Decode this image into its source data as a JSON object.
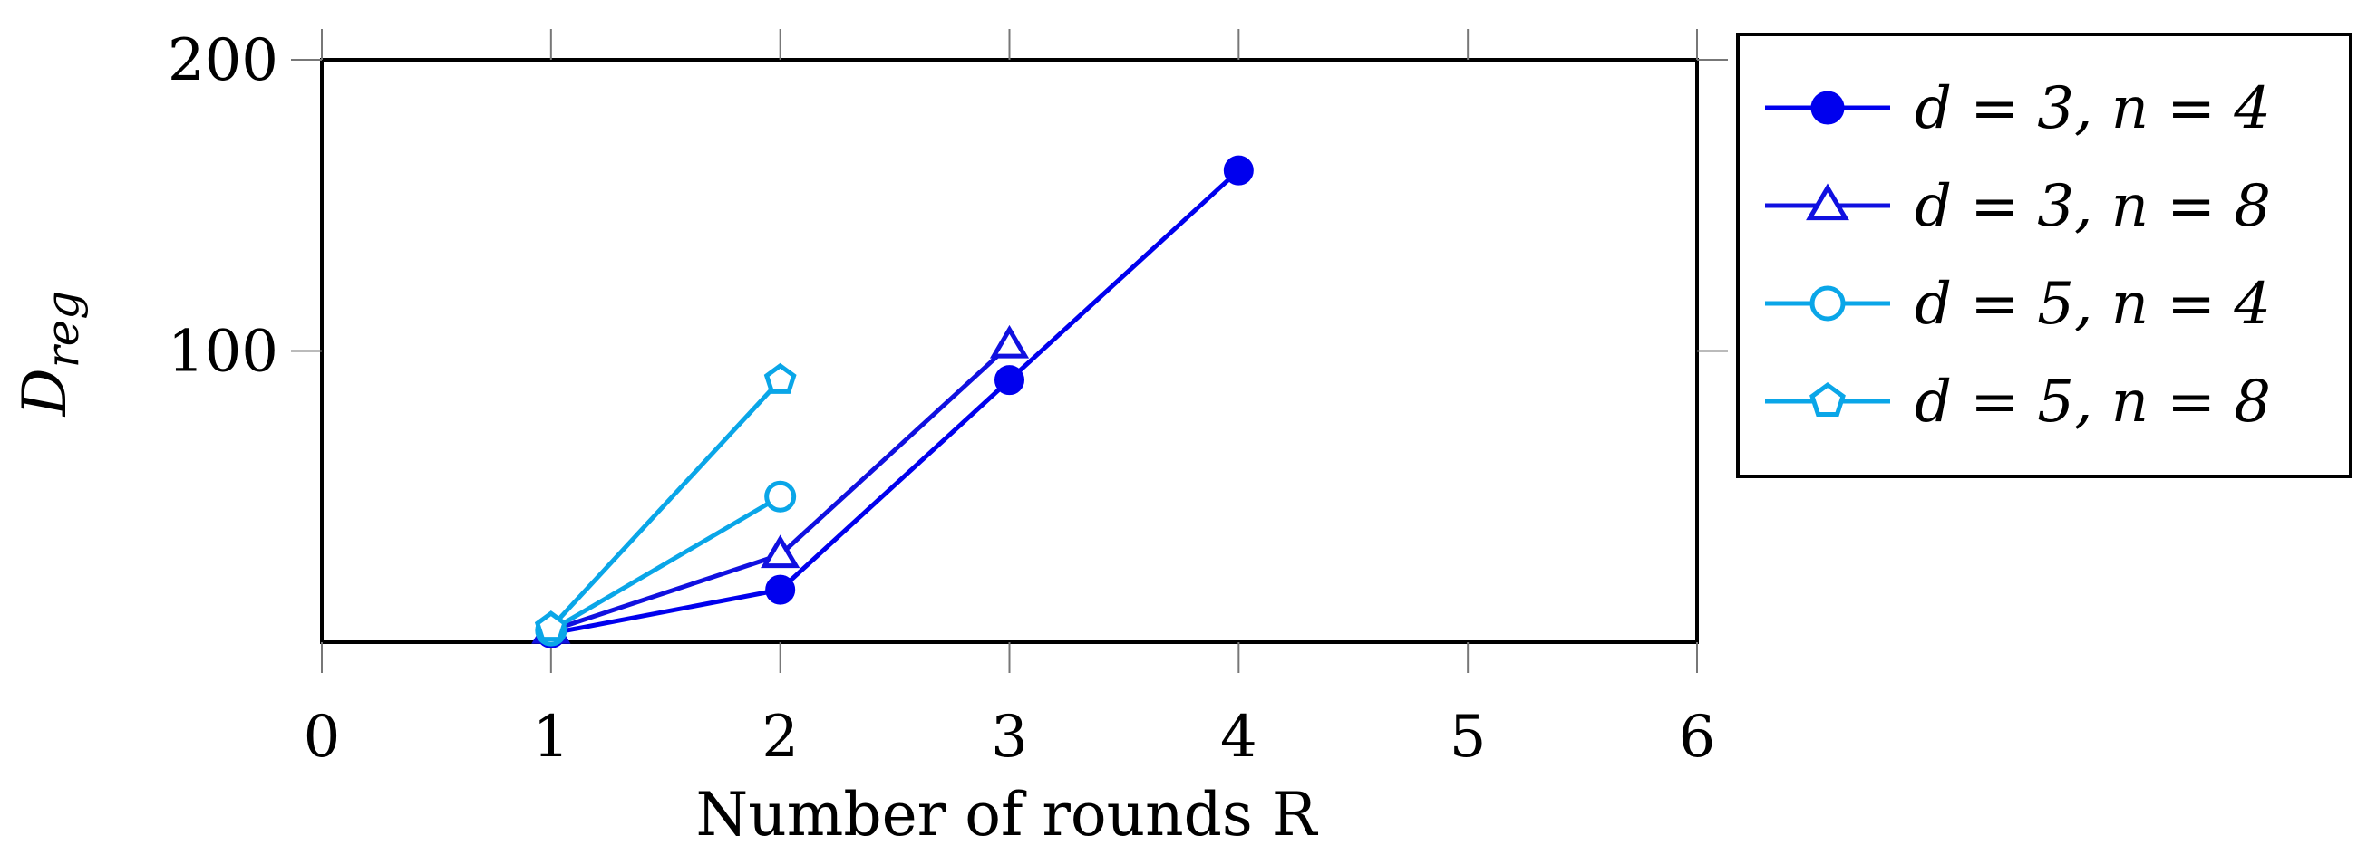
{
  "chart_data": {
    "type": "line",
    "xlabel": "Number of rounds R",
    "ylabel": "D_reg",
    "xlim": [
      0,
      6
    ],
    "ylim": [
      0,
      200
    ],
    "xticks": [
      0,
      1,
      2,
      3,
      4,
      5,
      6
    ],
    "yticks": [
      100,
      200
    ],
    "grid": false,
    "legend_position": "right",
    "series": [
      {
        "name": "d = 3, n = 4",
        "marker": "circle-filled",
        "color": "#0000ee",
        "x": [
          1,
          2,
          3,
          4
        ],
        "y": [
          3,
          18,
          90,
          162
        ]
      },
      {
        "name": "d = 3, n = 8",
        "marker": "triangle-open",
        "color": "#1010e0",
        "x": [
          1,
          2,
          3
        ],
        "y": [
          4,
          30,
          102
        ]
      },
      {
        "name": "d = 5, n = 4",
        "marker": "circle-open",
        "color": "#0aa6e8",
        "x": [
          1,
          2
        ],
        "y": [
          4,
          50
        ]
      },
      {
        "name": "d = 5, n = 8",
        "marker": "pentagon-open",
        "color": "#0aa6e8",
        "x": [
          1,
          2
        ],
        "y": [
          5,
          90
        ]
      }
    ]
  }
}
